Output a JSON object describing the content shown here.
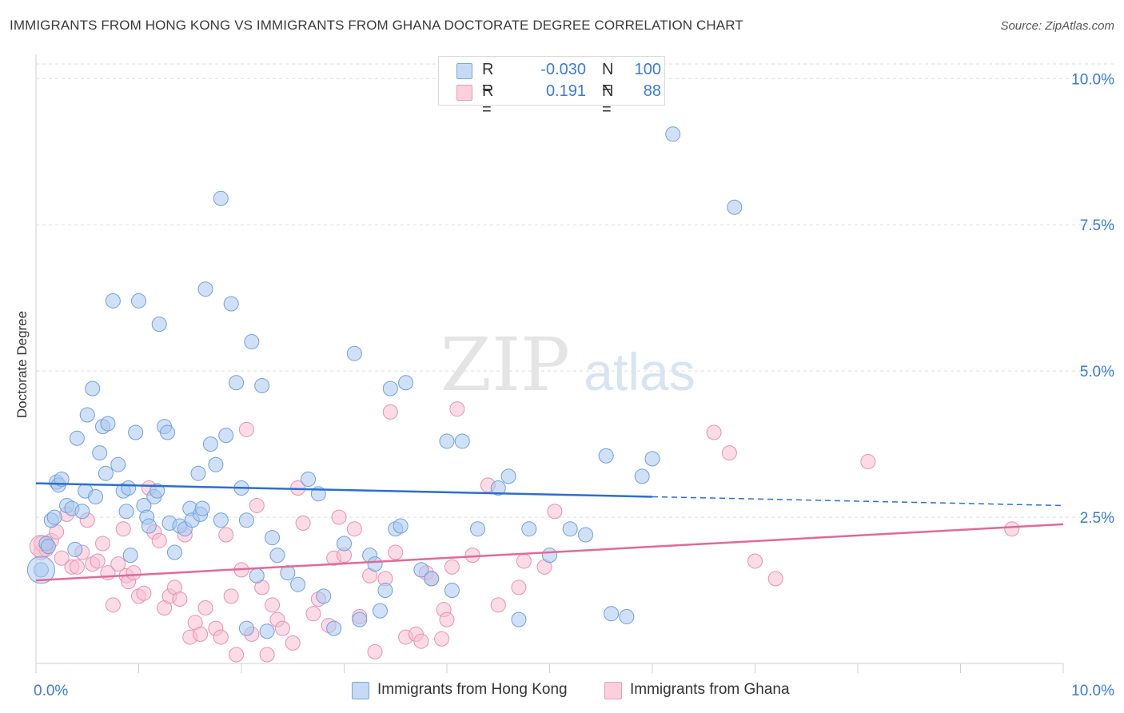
{
  "header": {
    "title": "IMMIGRANTS FROM HONG KONG VS IMMIGRANTS FROM GHANA DOCTORATE DEGREE CORRELATION CHART",
    "source": "Source: ZipAtlas.com"
  },
  "watermark": {
    "zip": "ZIP",
    "atlas": "atlas"
  },
  "legend": {
    "rows": [
      {
        "r_label": "R =",
        "r_value": "-0.030",
        "n_label": "N =",
        "n_value": "100"
      },
      {
        "r_label": "R =",
        "r_value": "0.191",
        "n_label": "N =",
        "n_value": "88"
      }
    ]
  },
  "bottom_legend": {
    "hong_kong": "Immigrants from Hong Kong",
    "ghana": "Immigrants from Ghana"
  },
  "colors": {
    "hong_kong_fill": "#aac8f0",
    "hong_kong_stroke": "#6f9fdc",
    "hong_kong_line": "#2a6fd0",
    "ghana_fill": "#f7bfd1",
    "ghana_stroke": "#e98fb0",
    "ghana_line": "#e06a96",
    "axis_label": "#3a7bd5",
    "grid": "#dddddd"
  },
  "chart_data": {
    "type": "scatter",
    "title": "IMMIGRANTS FROM HONG KONG VS IMMIGRANTS FROM GHANA DOCTORATE DEGREE CORRELATION CHART",
    "xlabel": "",
    "ylabel": "Doctorate Degree",
    "xlim": [
      0,
      10
    ],
    "ylim": [
      0,
      10.25
    ],
    "x_tick_labels": [
      {
        "value": 0,
        "label": "0.0%"
      },
      {
        "value": 10,
        "label": "10.0%"
      }
    ],
    "y_tick_labels": [
      {
        "value": 2.5,
        "label": "2.5%"
      },
      {
        "value": 5.0,
        "label": "5.0%"
      },
      {
        "value": 7.5,
        "label": "7.5%"
      },
      {
        "value": 10.0,
        "label": "10.0%"
      }
    ],
    "grid": true,
    "legend_position": "top-center",
    "series": [
      {
        "name": "Immigrants from Hong Kong",
        "r": -0.03,
        "n": 100,
        "trend": {
          "x": [
            0,
            6.0
          ],
          "y": [
            3.08,
            2.85
          ],
          "dashed_to": [
            10.0,
            2.7
          ]
        },
        "points": [
          [
            0.05,
            1.6
          ],
          [
            0.1,
            2.05
          ],
          [
            0.12,
            2.0
          ],
          [
            0.15,
            2.45
          ],
          [
            0.18,
            2.5
          ],
          [
            0.2,
            3.1
          ],
          [
            0.22,
            3.05
          ],
          [
            0.25,
            3.15
          ],
          [
            0.3,
            2.7
          ],
          [
            0.35,
            2.65
          ],
          [
            0.38,
            1.95
          ],
          [
            0.4,
            3.85
          ],
          [
            0.45,
            2.6
          ],
          [
            0.48,
            2.95
          ],
          [
            0.5,
            4.25
          ],
          [
            0.55,
            4.7
          ],
          [
            0.58,
            2.85
          ],
          [
            0.62,
            3.6
          ],
          [
            0.65,
            4.05
          ],
          [
            0.68,
            3.25
          ],
          [
            0.7,
            4.1
          ],
          [
            0.75,
            6.2
          ],
          [
            0.8,
            3.4
          ],
          [
            0.85,
            2.95
          ],
          [
            0.88,
            2.6
          ],
          [
            0.9,
            3.0
          ],
          [
            0.92,
            1.85
          ],
          [
            0.97,
            3.95
          ],
          [
            1.0,
            6.2
          ],
          [
            1.05,
            2.7
          ],
          [
            1.08,
            2.5
          ],
          [
            1.1,
            2.35
          ],
          [
            1.15,
            2.85
          ],
          [
            1.18,
            2.95
          ],
          [
            1.2,
            5.8
          ],
          [
            1.25,
            4.05
          ],
          [
            1.28,
            3.95
          ],
          [
            1.3,
            2.4
          ],
          [
            1.35,
            1.9
          ],
          [
            1.4,
            2.35
          ],
          [
            1.45,
            2.3
          ],
          [
            1.5,
            2.65
          ],
          [
            1.52,
            2.45
          ],
          [
            1.58,
            3.25
          ],
          [
            1.6,
            2.55
          ],
          [
            1.62,
            2.65
          ],
          [
            1.65,
            6.4
          ],
          [
            1.7,
            3.75
          ],
          [
            1.75,
            3.4
          ],
          [
            1.8,
            2.45
          ],
          [
            1.8,
            7.95
          ],
          [
            1.85,
            3.9
          ],
          [
            1.9,
            6.15
          ],
          [
            1.95,
            4.8
          ],
          [
            2.0,
            3.0
          ],
          [
            2.05,
            2.45
          ],
          [
            2.1,
            5.5
          ],
          [
            2.15,
            1.5
          ],
          [
            2.2,
            4.75
          ],
          [
            2.25,
            0.55
          ],
          [
            2.3,
            2.15
          ],
          [
            2.35,
            1.85
          ],
          [
            2.45,
            1.55
          ],
          [
            2.55,
            1.35
          ],
          [
            2.65,
            3.15
          ],
          [
            2.75,
            2.9
          ],
          [
            2.8,
            1.15
          ],
          [
            2.9,
            0.6
          ],
          [
            3.0,
            2.05
          ],
          [
            3.1,
            5.3
          ],
          [
            3.15,
            0.75
          ],
          [
            3.25,
            1.85
          ],
          [
            3.35,
            0.9
          ],
          [
            3.4,
            1.25
          ],
          [
            3.45,
            4.7
          ],
          [
            3.5,
            2.3
          ],
          [
            3.55,
            2.35
          ],
          [
            3.6,
            4.8
          ],
          [
            3.75,
            1.6
          ],
          [
            3.85,
            1.45
          ],
          [
            4.0,
            3.8
          ],
          [
            4.05,
            1.25
          ],
          [
            4.15,
            3.8
          ],
          [
            4.3,
            2.3
          ],
          [
            4.5,
            3.0
          ],
          [
            4.6,
            3.2
          ],
          [
            4.7,
            0.75
          ],
          [
            4.8,
            2.3
          ],
          [
            5.0,
            1.85
          ],
          [
            5.2,
            2.3
          ],
          [
            5.35,
            2.2
          ],
          [
            5.55,
            3.55
          ],
          [
            5.6,
            0.85
          ],
          [
            5.75,
            0.8
          ],
          [
            5.9,
            3.2
          ],
          [
            6.0,
            3.5
          ],
          [
            6.2,
            9.05
          ],
          [
            6.8,
            7.8
          ],
          [
            2.05,
            0.6
          ],
          [
            3.3,
            1.7
          ]
        ]
      },
      {
        "name": "Immigrants from Ghana",
        "r": 0.191,
        "n": 88,
        "trend": {
          "x": [
            0,
            10.0
          ],
          "y": [
            1.42,
            2.38
          ]
        },
        "points": [
          [
            0.05,
            1.9
          ],
          [
            0.1,
            1.95
          ],
          [
            0.15,
            2.1
          ],
          [
            0.2,
            2.25
          ],
          [
            0.25,
            1.8
          ],
          [
            0.3,
            2.55
          ],
          [
            0.35,
            1.65
          ],
          [
            0.4,
            1.65
          ],
          [
            0.45,
            1.9
          ],
          [
            0.5,
            2.45
          ],
          [
            0.55,
            1.7
          ],
          [
            0.6,
            1.75
          ],
          [
            0.65,
            2.05
          ],
          [
            0.7,
            1.55
          ],
          [
            0.75,
            1.0
          ],
          [
            0.8,
            1.7
          ],
          [
            0.85,
            2.3
          ],
          [
            0.88,
            1.5
          ],
          [
            0.9,
            1.4
          ],
          [
            0.95,
            1.55
          ],
          [
            1.0,
            1.15
          ],
          [
            1.05,
            1.2
          ],
          [
            1.1,
            3.0
          ],
          [
            1.15,
            2.25
          ],
          [
            1.2,
            2.1
          ],
          [
            1.25,
            0.95
          ],
          [
            1.3,
            1.15
          ],
          [
            1.35,
            1.3
          ],
          [
            1.4,
            1.1
          ],
          [
            1.45,
            2.2
          ],
          [
            1.5,
            0.45
          ],
          [
            1.55,
            0.7
          ],
          [
            1.6,
            0.5
          ],
          [
            1.65,
            0.95
          ],
          [
            1.75,
            0.6
          ],
          [
            1.8,
            0.45
          ],
          [
            1.85,
            2.2
          ],
          [
            1.9,
            1.15
          ],
          [
            1.95,
            0.15
          ],
          [
            2.0,
            1.6
          ],
          [
            2.05,
            4.0
          ],
          [
            2.1,
            0.5
          ],
          [
            2.15,
            2.7
          ],
          [
            2.2,
            1.3
          ],
          [
            2.25,
            0.15
          ],
          [
            2.3,
            1.0
          ],
          [
            2.35,
            0.75
          ],
          [
            2.4,
            0.6
          ],
          [
            2.5,
            0.35
          ],
          [
            2.55,
            3.0
          ],
          [
            2.6,
            2.4
          ],
          [
            2.7,
            0.85
          ],
          [
            2.75,
            1.1
          ],
          [
            2.85,
            0.65
          ],
          [
            2.9,
            1.8
          ],
          [
            2.95,
            2.5
          ],
          [
            3.0,
            1.85
          ],
          [
            3.1,
            2.3
          ],
          [
            3.15,
            0.8
          ],
          [
            3.25,
            1.5
          ],
          [
            3.3,
            0.2
          ],
          [
            3.4,
            1.45
          ],
          [
            3.45,
            4.3
          ],
          [
            3.5,
            1.9
          ],
          [
            3.6,
            0.45
          ],
          [
            3.7,
            0.5
          ],
          [
            3.75,
            0.38
          ],
          [
            3.8,
            1.55
          ],
          [
            3.85,
            1.45
          ],
          [
            3.95,
            0.42
          ],
          [
            3.97,
            0.92
          ],
          [
            4.0,
            0.75
          ],
          [
            4.05,
            1.65
          ],
          [
            4.1,
            4.35
          ],
          [
            4.25,
            1.85
          ],
          [
            4.4,
            3.05
          ],
          [
            4.5,
            1.0
          ],
          [
            4.7,
            1.3
          ],
          [
            4.75,
            1.75
          ],
          [
            4.95,
            1.65
          ],
          [
            5.05,
            2.6
          ],
          [
            6.6,
            3.95
          ],
          [
            6.75,
            3.6
          ],
          [
            7.0,
            1.75
          ],
          [
            7.2,
            1.45
          ],
          [
            8.1,
            3.45
          ],
          [
            9.5,
            2.3
          ],
          [
            0.05,
            2.05
          ]
        ]
      }
    ]
  }
}
